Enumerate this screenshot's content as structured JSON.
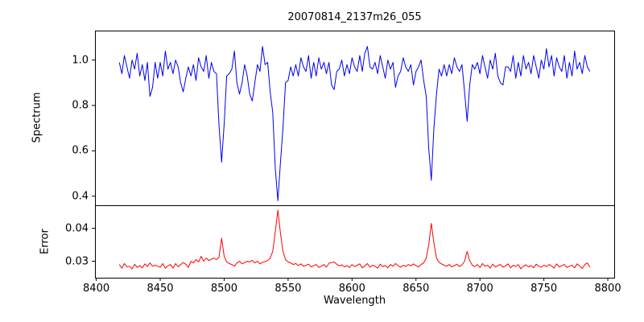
{
  "title": "20070814_2137m26_055",
  "xlabel": "Wavelength",
  "x_tick_values": [
    8400,
    8450,
    8500,
    8550,
    8600,
    8650,
    8700,
    8750,
    8800
  ],
  "x_tick_labels": [
    "8400",
    "8450",
    "8500",
    "8550",
    "8600",
    "8650",
    "8700",
    "8750",
    "8800"
  ],
  "chart_data": [
    {
      "type": "line",
      "name": "spectrum",
      "title": "20070814_2137m26_055",
      "ylabel": "Spectrum",
      "line_color": "#0000ee",
      "xlim": [
        8399,
        8805
      ],
      "ylim": [
        0.36,
        1.13
      ],
      "ytick_values": [
        0.4,
        0.6,
        0.8,
        1.0
      ],
      "ytick_labels": [
        "0.4",
        "0.6",
        "0.8",
        "1.0"
      ],
      "x_start": 8418,
      "x_step": 2,
      "y": [
        0.99,
        0.94,
        1.02,
        0.97,
        0.92,
        1.0,
        0.96,
        1.03,
        0.93,
        0.98,
        0.91,
        0.99,
        0.84,
        0.88,
        0.99,
        0.92,
        0.99,
        0.93,
        1.04,
        0.96,
        0.99,
        0.94,
        1.0,
        0.97,
        0.9,
        0.86,
        0.92,
        0.97,
        0.93,
        0.98,
        0.91,
        1.01,
        0.97,
        0.95,
        1.02,
        0.92,
        0.99,
        0.95,
        0.94,
        0.71,
        0.55,
        0.72,
        0.93,
        0.94,
        0.96,
        1.04,
        0.9,
        0.85,
        0.9,
        0.98,
        0.93,
        0.85,
        0.82,
        0.9,
        0.98,
        0.95,
        1.06,
        0.98,
        0.99,
        0.86,
        0.77,
        0.52,
        0.38,
        0.55,
        0.7,
        0.9,
        0.91,
        0.97,
        0.93,
        0.98,
        0.93,
        1.01,
        0.97,
        0.95,
        1.02,
        0.92,
        0.99,
        0.93,
        1.01,
        0.96,
        0.99,
        0.94,
        0.99,
        0.89,
        0.87,
        0.95,
        0.96,
        1.0,
        0.93,
        0.98,
        0.94,
        1.01,
        0.97,
        0.95,
        1.02,
        0.95,
        1.03,
        1.06,
        0.97,
        0.96,
        0.99,
        0.94,
        1.02,
        0.97,
        0.92,
        1.0,
        0.96,
        0.99,
        0.88,
        0.93,
        0.95,
        1.01,
        0.97,
        0.95,
        0.98,
        0.89,
        0.95,
        0.97,
        1.0,
        0.91,
        0.84,
        0.61,
        0.47,
        0.7,
        0.85,
        0.96,
        0.93,
        0.98,
        0.93,
        0.98,
        0.94,
        1.01,
        0.97,
        0.95,
        0.98,
        0.86,
        0.73,
        0.89,
        0.98,
        0.96,
        0.99,
        0.94,
        1.02,
        0.97,
        0.92,
        1.0,
        0.96,
        1.03,
        0.93,
        0.9,
        0.89,
        0.97,
        0.97,
        0.95,
        1.02,
        0.92,
        0.99,
        0.93,
        1.02,
        0.96,
        0.99,
        0.94,
        1.02,
        0.97,
        0.92,
        1.0,
        0.96,
        1.05,
        0.97,
        1.02,
        0.93,
        1.01,
        0.97,
        0.95,
        1.02,
        0.92,
        0.99,
        0.93,
        1.04,
        0.96,
        0.99,
        0.94,
        1.02,
        0.97,
        0.95
      ]
    },
    {
      "type": "line",
      "name": "error",
      "ylabel": "Error",
      "line_color": "#ff0000",
      "xlim": [
        8399,
        8805
      ],
      "ylim": [
        0.025,
        0.047
      ],
      "ytick_values": [
        0.03,
        0.04
      ],
      "ytick_labels": [
        "0.03",
        "0.04"
      ],
      "x_start": 8418,
      "x_step": 2,
      "y": [
        0.029,
        0.0279,
        0.0293,
        0.0283,
        0.0285,
        0.0277,
        0.0291,
        0.0281,
        0.0287,
        0.028,
        0.0292,
        0.0284,
        0.0295,
        0.0285,
        0.0288,
        0.0285,
        0.0282,
        0.0293,
        0.0279,
        0.0286,
        0.029,
        0.0279,
        0.0293,
        0.0283,
        0.029,
        0.0296,
        0.0291,
        0.0281,
        0.03,
        0.0295,
        0.0305,
        0.0298,
        0.0315,
        0.03,
        0.031,
        0.0302,
        0.0306,
        0.031,
        0.0305,
        0.0312,
        0.037,
        0.0315,
        0.0298,
        0.0293,
        0.029,
        0.0285,
        0.0295,
        0.03,
        0.0292,
        0.0296,
        0.03,
        0.0298,
        0.0303,
        0.0295,
        0.03,
        0.0292,
        0.0297,
        0.0299,
        0.0302,
        0.031,
        0.033,
        0.039,
        0.0455,
        0.0385,
        0.033,
        0.0305,
        0.0298,
        0.0295,
        0.029,
        0.0293,
        0.0287,
        0.0292,
        0.0285,
        0.0288,
        0.0291,
        0.0283,
        0.0287,
        0.029,
        0.0281,
        0.0285,
        0.029,
        0.0282,
        0.0294,
        0.0296,
        0.0298,
        0.0291,
        0.0286,
        0.0289,
        0.0283,
        0.0287,
        0.0281,
        0.029,
        0.0284,
        0.0288,
        0.0292,
        0.028,
        0.0286,
        0.0293,
        0.0282,
        0.0288,
        0.0285,
        0.0279,
        0.0291,
        0.0284,
        0.0287,
        0.028,
        0.029,
        0.0285,
        0.0293,
        0.0287,
        0.0282,
        0.0288,
        0.0284,
        0.029,
        0.0286,
        0.0292,
        0.0287,
        0.0283,
        0.029,
        0.0295,
        0.031,
        0.035,
        0.0415,
        0.0355,
        0.031,
        0.0297,
        0.0292,
        0.0288,
        0.0285,
        0.029,
        0.0283,
        0.0287,
        0.0291,
        0.0284,
        0.0289,
        0.03,
        0.033,
        0.0302,
        0.0288,
        0.0284,
        0.029,
        0.0281,
        0.0293,
        0.0285,
        0.0288,
        0.0279,
        0.0291,
        0.0283,
        0.0287,
        0.029,
        0.0282,
        0.0286,
        0.0292,
        0.028,
        0.0288,
        0.0284,
        0.029,
        0.0277,
        0.0285,
        0.0289,
        0.0283,
        0.0287,
        0.028,
        0.0291,
        0.0285,
        0.0282,
        0.0288,
        0.0284,
        0.029,
        0.0286,
        0.0279,
        0.0292,
        0.0283,
        0.0287,
        0.029,
        0.0281,
        0.0285,
        0.0288,
        0.028,
        0.0292,
        0.0286,
        0.0278,
        0.029,
        0.0295,
        0.0282
      ]
    }
  ]
}
